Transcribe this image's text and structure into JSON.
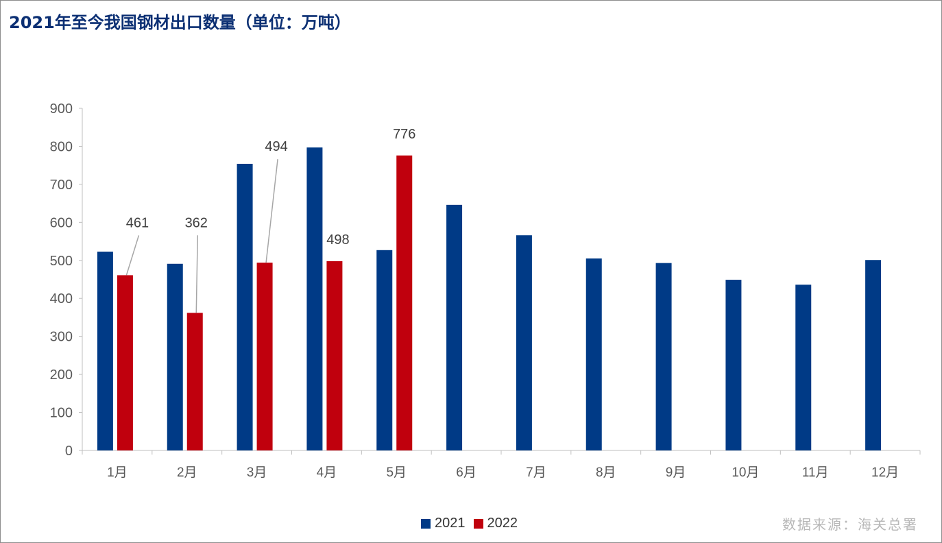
{
  "chart_data": {
    "type": "bar",
    "title": "2021年至今我国钢材出口数量（单位：万吨）",
    "xlabel": "",
    "ylabel": "",
    "ylim": [
      0,
      900
    ],
    "yticks": [
      0,
      100,
      200,
      300,
      400,
      500,
      600,
      700,
      800,
      900
    ],
    "categories": [
      "1月",
      "2月",
      "3月",
      "4月",
      "5月",
      "6月",
      "7月",
      "8月",
      "9月",
      "10月",
      "11月",
      "12月"
    ],
    "series": [
      {
        "name": "2021",
        "color": "#003a86",
        "values": [
          523,
          491,
          754,
          797,
          527,
          646,
          566,
          505,
          493,
          449,
          436,
          501
        ]
      },
      {
        "name": "2022",
        "color": "#c0000d",
        "values": [
          461,
          362,
          494,
          498,
          776,
          null,
          null,
          null,
          null,
          null,
          null,
          null
        ]
      }
    ],
    "data_labels": [
      {
        "series": "2022",
        "category": "1月",
        "text": "461"
      },
      {
        "series": "2022",
        "category": "2月",
        "text": "362"
      },
      {
        "series": "2022",
        "category": "3月",
        "text": "494"
      },
      {
        "series": "2022",
        "category": "4月",
        "text": "498"
      },
      {
        "series": "2022",
        "category": "5月",
        "text": "776"
      }
    ],
    "legend_position": "bottom-center",
    "grid": false
  },
  "source_note": "数据来源：海关总署"
}
